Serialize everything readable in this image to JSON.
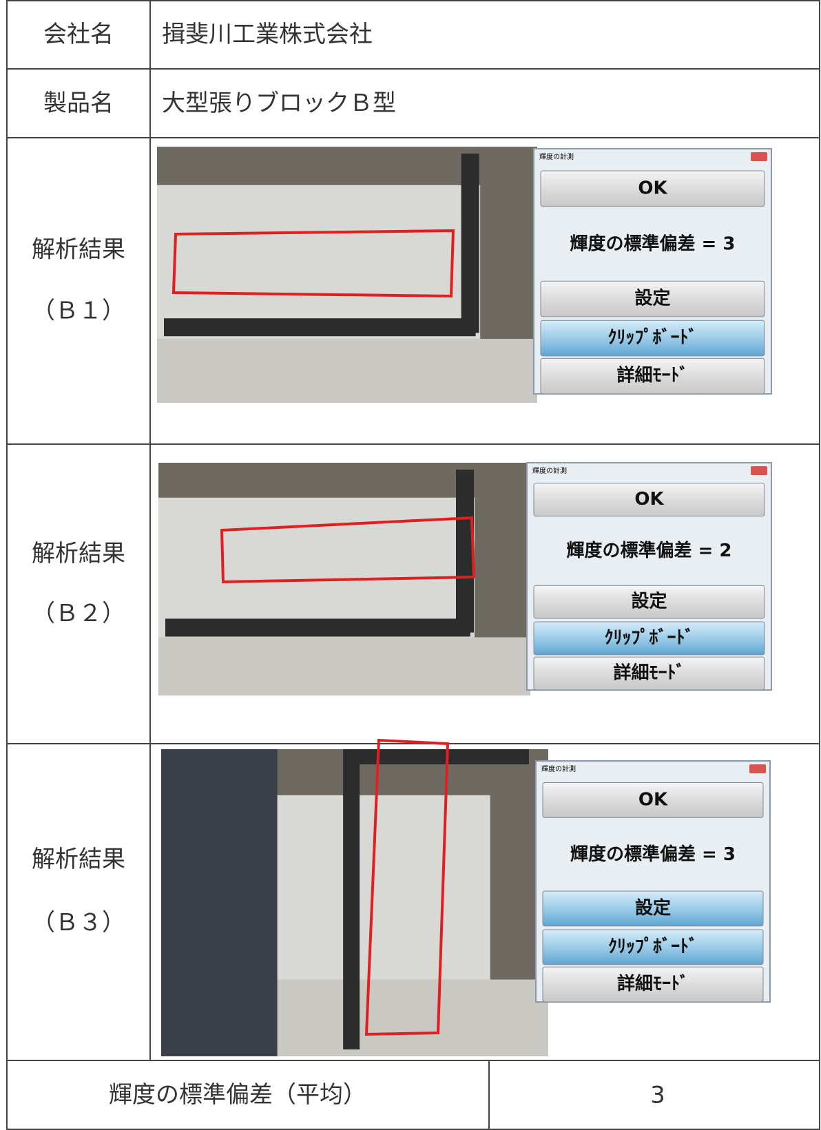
{
  "table": {
    "rows": [
      [
        "会社名",
        "揖斐川工業株式会社"
      ],
      [
        "製品名",
        "大型張りブロックＢ型"
      ]
    ],
    "analyses": [
      {
        "label": "解析結果",
        "sub": "（Ｂ１）",
        "dialog": {
          "title": "輝度の計測",
          "ok": "OK",
          "result": "輝度の標準偏差 = 3",
          "settings": "設定",
          "clipboard": "ｸﾘｯﾌﾟﾎﾞｰﾄﾞ",
          "detail": "詳細ﾓｰﾄﾞ"
        }
      },
      {
        "label": "解析結果",
        "sub": "（Ｂ２）",
        "dialog": {
          "title": "輝度の計測",
          "ok": "OK",
          "result": "輝度の標準偏差 = 2",
          "settings": "設定",
          "clipboard": "ｸﾘｯﾌﾟﾎﾞｰﾄﾞ",
          "detail": "詳細ﾓｰﾄﾞ"
        }
      },
      {
        "label": "解析結果",
        "sub": "（Ｂ３）",
        "dialog": {
          "title": "輝度の計測",
          "ok": "OK",
          "result": "輝度の標準偏差 = 3",
          "settings": "設定",
          "clipboard": "ｸﾘｯﾌﾟﾎﾞｰﾄﾞ",
          "detail": "詳細ﾓｰﾄﾞ"
        }
      }
    ],
    "footer": [
      "輝度の標準偏差（平均）",
      "3"
    ]
  }
}
